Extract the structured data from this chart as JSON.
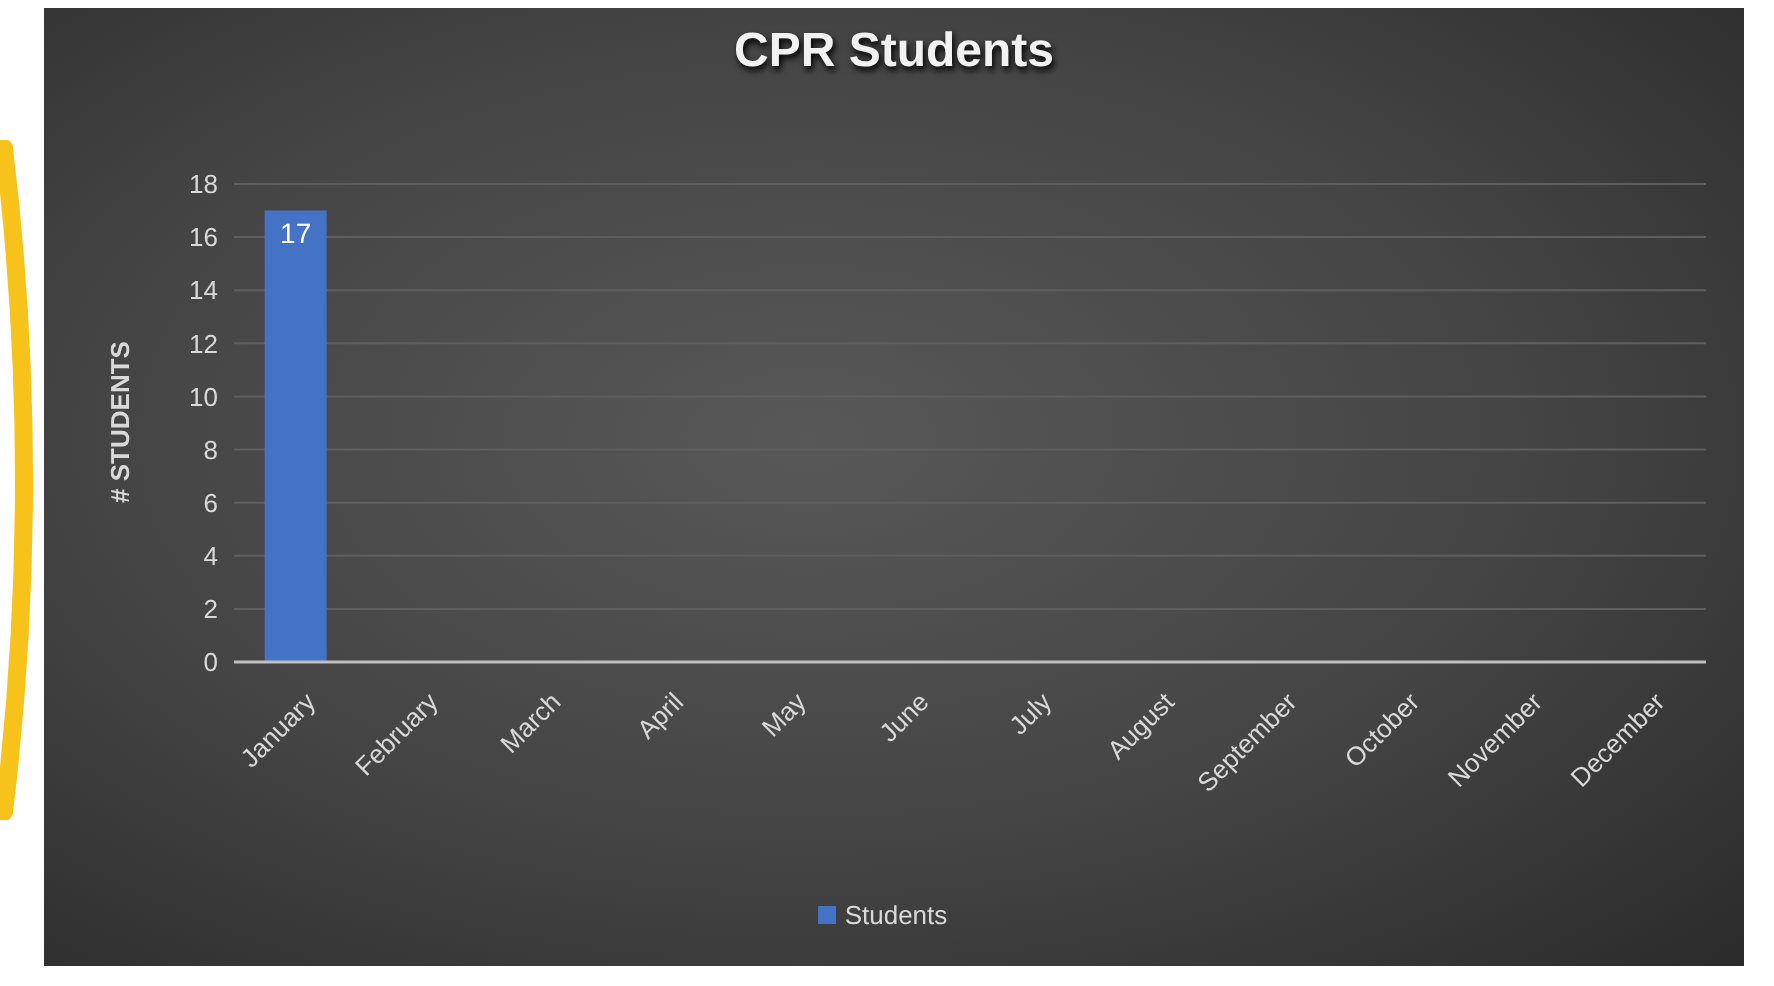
{
  "chart_data": {
    "type": "bar",
    "title": "CPR Students",
    "ylabel": "# STUDENTS",
    "categories": [
      "January",
      "February",
      "March",
      "April",
      "May",
      "June",
      "July",
      "August",
      "September",
      "October",
      "November",
      "December"
    ],
    "series": [
      {
        "name": "Students",
        "color": "#4472c4",
        "values": [
          17,
          null,
          null,
          null,
          null,
          null,
          null,
          null,
          null,
          null,
          null,
          null
        ]
      }
    ],
    "ylim": [
      0,
      18
    ],
    "yticks": [
      0,
      2,
      4,
      6,
      8,
      10,
      12,
      14,
      16,
      18
    ],
    "grid": "y",
    "legend": "bottom",
    "data_labels": true
  }
}
